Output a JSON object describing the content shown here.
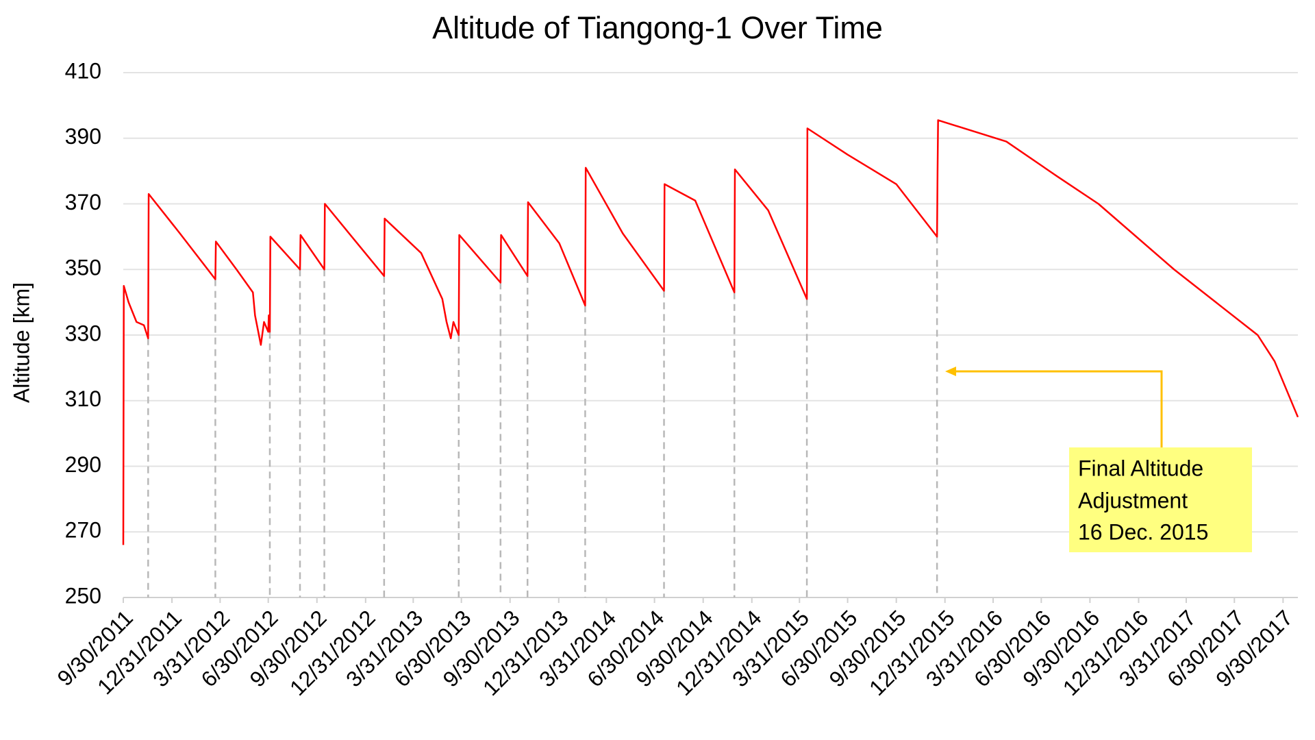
{
  "chart_data": {
    "type": "line",
    "title": "Altitude of Tiangong-1 Over Time",
    "y_label": "Altitude [km]",
    "xlim": [
      "9/30/2011",
      "10/28/2017"
    ],
    "xticks": [
      "9/30/2011",
      "12/31/2011",
      "3/31/2012",
      "6/30/2012",
      "9/30/2012",
      "12/31/2012",
      "3/31/2013",
      "6/30/2013",
      "9/30/2013",
      "12/31/2013",
      "3/31/2014",
      "6/30/2014",
      "9/30/2014",
      "12/31/2014",
      "3/31/2015",
      "6/30/2015",
      "9/30/2015",
      "12/31/2015",
      "3/31/2016",
      "6/30/2016",
      "9/30/2016",
      "12/31/2016",
      "3/31/2017",
      "6/30/2017",
      "9/30/2017"
    ],
    "ylim": [
      250,
      410
    ],
    "yticks": [
      250,
      270,
      290,
      310,
      330,
      350,
      370,
      390,
      410
    ],
    "grid": true,
    "color": "#ff0000",
    "x": [
      "9/30/2011",
      "10/1/2011",
      "10/10/2011",
      "10/25/2011",
      "11/8/2011",
      "11/16/2011",
      "11/17/2011",
      "1/15/2012",
      "3/22/2012",
      "3/23/2012",
      "5/1/2012",
      "6/1/2012",
      "6/5/2012",
      "6/16/2012",
      "6/22/2012",
      "6/30/2012",
      "7/1/2012",
      "7/3/2012",
      "7/4/2012",
      "8/29/2012",
      "8/30/2012",
      "10/14/2012",
      "10/15/2012",
      "12/15/2012",
      "2/4/2013",
      "2/5/2013",
      "4/15/2013",
      "5/25/2013",
      "6/2/2013",
      "6/10/2013",
      "6/15/2013",
      "6/25/2013",
      "6/26/2013",
      "9/12/2013",
      "9/13/2013",
      "11/2/2013",
      "11/3/2013",
      "1/1/2014",
      "2/19/2014",
      "2/20/2014",
      "5/1/2014",
      "7/18/2014",
      "7/19/2014",
      "9/15/2014",
      "11/28/2014",
      "11/29/2014",
      "1/31/2015",
      "4/14/2015",
      "4/15/2015",
      "6/30/2015",
      "9/30/2015",
      "12/16/2015",
      "12/17/2015",
      "12/18/2015",
      "4/25/2016",
      "7/29/2016",
      "10/16/2016",
      "3/8/2017",
      "5/26/2017",
      "8/13/2017",
      "9/14/2017",
      "10/28/2017"
    ],
    "values": [
      266,
      345,
      340,
      334,
      333,
      329,
      373,
      361,
      347,
      358.5,
      350,
      343,
      336,
      327,
      334,
      331,
      336,
      331,
      360,
      350,
      360.5,
      350,
      370,
      358,
      348,
      365.5,
      355,
      341,
      334,
      329,
      334,
      330,
      360.5,
      346,
      360.5,
      348,
      370.5,
      358,
      339,
      381,
      361,
      343.5,
      376,
      371,
      343,
      380.5,
      368,
      341,
      393,
      385,
      376,
      360,
      380,
      395.5,
      389,
      378.5,
      370,
      350,
      340,
      330,
      322,
      305
    ],
    "annotation": [
      "Final Altitude",
      "Adjustment",
      "16 Dec. 2015"
    ]
  }
}
